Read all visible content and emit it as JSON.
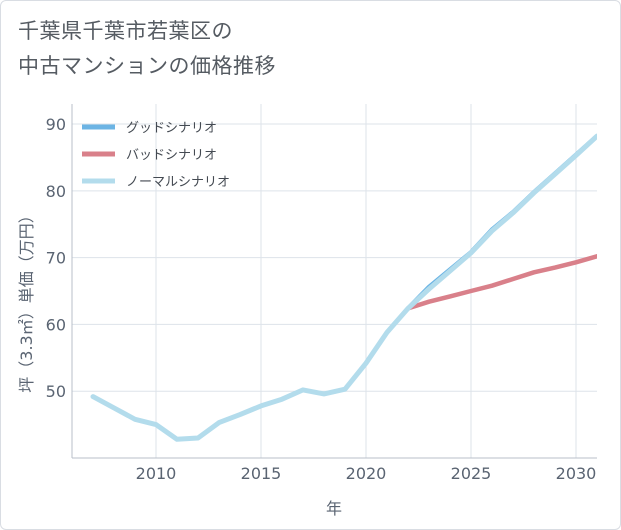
{
  "title": {
    "line1": "千葉県千葉市若葉区の",
    "line2": "中古マンションの価格推移"
  },
  "chart_data": {
    "type": "line",
    "xlabel": "年",
    "ylabel": "坪（3.3㎡）単価（万円）",
    "xlim": [
      2006,
      2031
    ],
    "ylim": [
      40,
      93
    ],
    "x_ticks": [
      2010,
      2015,
      2020,
      2025,
      2030
    ],
    "y_ticks": [
      50,
      60,
      70,
      80,
      90
    ],
    "grid": true,
    "legend_position": "top-left",
    "series": [
      {
        "name": "グッドシナリオ",
        "color": "#6cb4e4",
        "x": [
          2022,
          2023,
          2024,
          2025,
          2026,
          2027,
          2028,
          2029,
          2030,
          2031
        ],
        "y": [
          62.4,
          65.6,
          68.2,
          70.8,
          74.2,
          76.8,
          79.8,
          82.6,
          85.4,
          88.2
        ]
      },
      {
        "name": "バッドシナリオ",
        "color": "#d9808a",
        "x": [
          2022,
          2023,
          2024,
          2025,
          2026,
          2027,
          2028,
          2029,
          2030,
          2031
        ],
        "y": [
          62.4,
          63.4,
          64.2,
          65.0,
          65.8,
          66.8,
          67.8,
          68.5,
          69.3,
          70.2
        ]
      },
      {
        "name": "ノーマルシナリオ",
        "color": "#b3dcec",
        "x": [
          2007,
          2008,
          2009,
          2010,
          2011,
          2012,
          2013,
          2014,
          2015,
          2016,
          2017,
          2018,
          2019,
          2020,
          2021,
          2022,
          2023,
          2024,
          2025,
          2026,
          2027,
          2028,
          2029,
          2030,
          2031
        ],
        "y": [
          49.2,
          47.5,
          45.8,
          45.0,
          42.8,
          43.0,
          45.3,
          46.5,
          47.8,
          48.8,
          50.2,
          49.6,
          50.3,
          54.2,
          58.8,
          62.4,
          65.3,
          68.0,
          70.7,
          74.0,
          76.7,
          79.7,
          82.5,
          85.3,
          88.2
        ]
      }
    ]
  }
}
